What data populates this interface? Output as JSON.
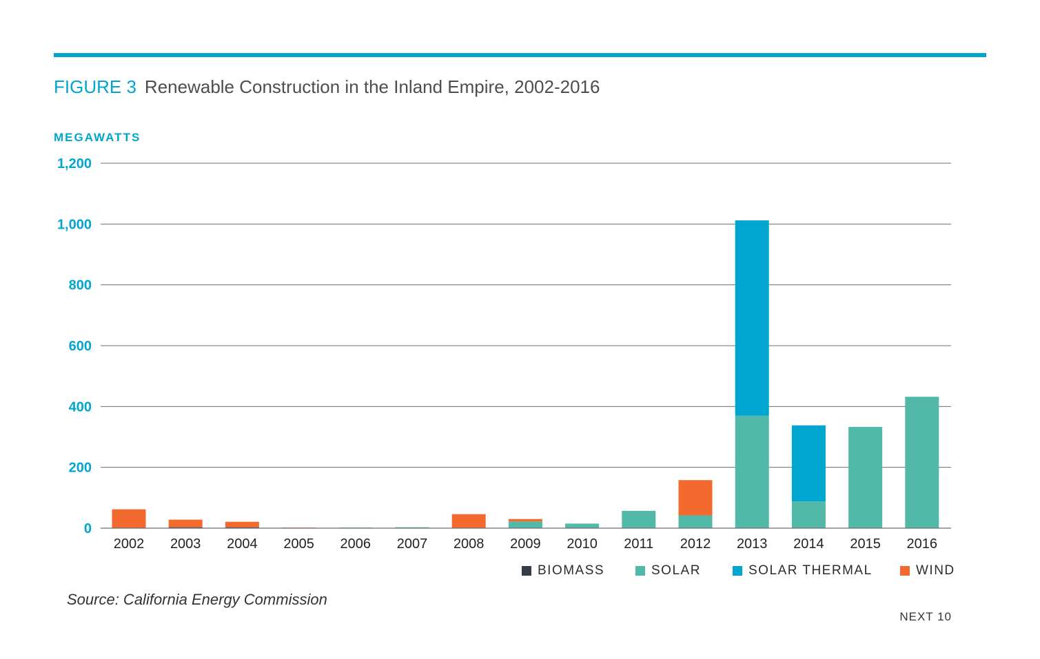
{
  "figure": {
    "number": "FIGURE 3",
    "title": "Renewable Construction in the Inland Empire, 2002-2016",
    "accent_color": "#00a6cf"
  },
  "y_axis_title": "MEGAWATTS",
  "source": "Source: California Energy Commission",
  "brand": "NEXT 10",
  "chart_data": {
    "type": "bar",
    "stacked": true,
    "title": "Renewable Construction in the Inland Empire, 2002-2016",
    "ylabel": "MEGAWATTS",
    "ylim": [
      0,
      1200
    ],
    "yticks": [
      0,
      200,
      400,
      600,
      800,
      1000,
      1200
    ],
    "ytick_labels": [
      "0",
      "200",
      "400",
      "600",
      "800",
      "1,000",
      "1,200"
    ],
    "grid": true,
    "legend_position": "bottom-right",
    "categories": [
      "2002",
      "2003",
      "2004",
      "2005",
      "2006",
      "2007",
      "2008",
      "2009",
      "2010",
      "2011",
      "2012",
      "2013",
      "2014",
      "2015",
      "2016"
    ],
    "series": [
      {
        "name": "BIOMASS",
        "color": "#333e48",
        "values": [
          0,
          3,
          3,
          0,
          0,
          0,
          0,
          0,
          0,
          0,
          0,
          0,
          0,
          0,
          0
        ]
      },
      {
        "name": "SOLAR",
        "color": "#52b9a9",
        "values": [
          0,
          0,
          0,
          0,
          2,
          3,
          0,
          22,
          15,
          57,
          42,
          370,
          88,
          333,
          432
        ]
      },
      {
        "name": "SOLAR THERMAL",
        "color": "#00a6cf",
        "values": [
          0,
          0,
          0,
          0,
          0,
          0,
          0,
          0,
          0,
          0,
          0,
          642,
          250,
          0,
          0
        ]
      },
      {
        "name": "WIND",
        "color": "#f26a2e",
        "values": [
          62,
          25,
          18,
          2,
          0,
          0,
          46,
          8,
          0,
          0,
          116,
          0,
          0,
          0,
          0
        ]
      }
    ]
  }
}
